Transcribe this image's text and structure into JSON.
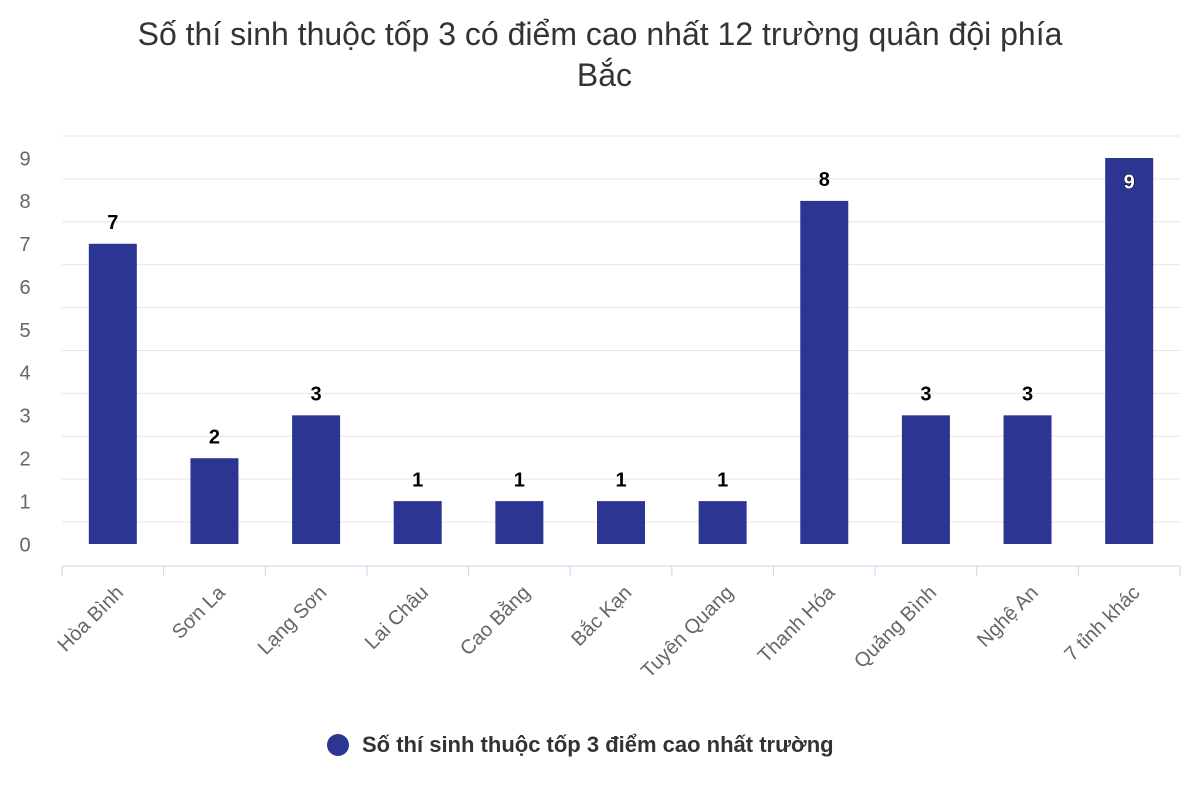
{
  "chart_data": {
    "type": "bar",
    "title": "Số thí sinh thuộc tốp 3 có điểm cao nhất 12 trường quân đội phía Bắc",
    "categories": [
      "Hòa Bình",
      "Sơn La",
      "Lạng Sơn",
      "Lai Châu",
      "Cao Bằng",
      "Bắc Kạn",
      "Tuyên Quang",
      "Thanh Hóa",
      "Quảng Bình",
      "Nghệ An",
      "7 tỉnh khác"
    ],
    "series": [
      {
        "name": "Số thí sinh thuộc tốp 3 điểm cao nhất trường",
        "color": "#2c3592",
        "values": [
          7,
          2,
          3,
          1,
          1,
          1,
          1,
          8,
          3,
          3,
          9
        ]
      }
    ],
    "ylim": [
      0,
      9
    ],
    "yticks": [
      0,
      1,
      2,
      3,
      4,
      5,
      6,
      7,
      8,
      9
    ],
    "grid": true
  }
}
